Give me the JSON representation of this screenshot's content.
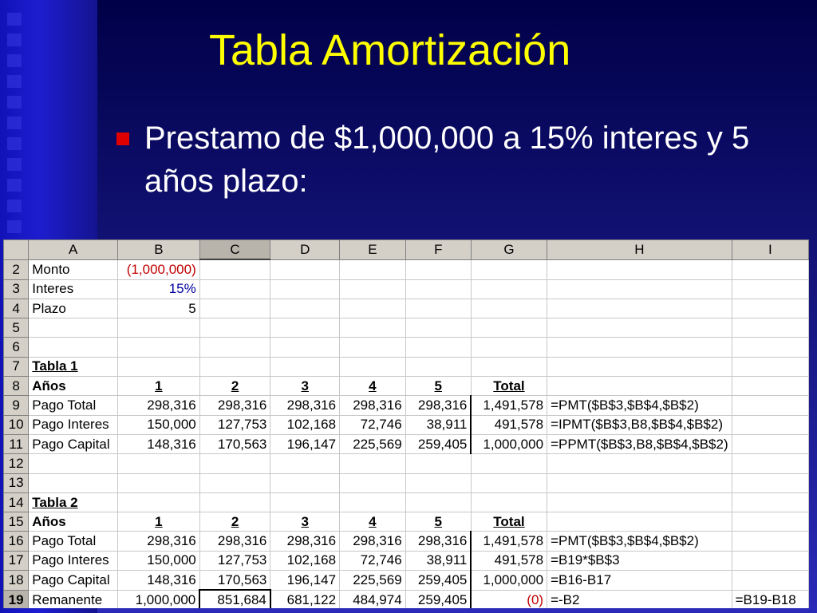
{
  "slide": {
    "title": "Tabla Amortización",
    "bullet": "Prestamo de $1,000,000 a 15% interes y 5 años plazo:",
    "colors": {
      "title": "#ffff00",
      "bullet_mark": "#e00000",
      "background": "#14147a"
    }
  },
  "sheet": {
    "columns": [
      "A",
      "B",
      "C",
      "D",
      "E",
      "F",
      "G",
      "H",
      "I"
    ],
    "selected_column": "C",
    "active_cell": "C19",
    "rows": [
      {
        "n": "2",
        "cells": [
          "Monto",
          "(1,000,000)",
          "",
          "",
          "",
          "",
          "",
          "",
          ""
        ]
      },
      {
        "n": "3",
        "cells": [
          "Interes",
          "15%",
          "",
          "",
          "",
          "",
          "",
          "",
          ""
        ]
      },
      {
        "n": "4",
        "cells": [
          "Plazo",
          "5",
          "",
          "",
          "",
          "",
          "",
          "",
          ""
        ]
      },
      {
        "n": "5",
        "cells": [
          "",
          "",
          "",
          "",
          "",
          "",
          "",
          "",
          ""
        ]
      },
      {
        "n": "6",
        "cells": [
          "",
          "",
          "",
          "",
          "",
          "",
          "",
          "",
          ""
        ]
      },
      {
        "n": "7",
        "cells": [
          "Tabla 1",
          "",
          "",
          "",
          "",
          "",
          "",
          "",
          ""
        ]
      },
      {
        "n": "8",
        "cells": [
          "Años",
          "1",
          "2",
          "3",
          "4",
          "5",
          "Total",
          "",
          ""
        ]
      },
      {
        "n": "9",
        "cells": [
          "Pago Total",
          "298,316",
          "298,316",
          "298,316",
          "298,316",
          "298,316",
          "1,491,578",
          "=PMT($B$3,$B$4,$B$2)",
          ""
        ]
      },
      {
        "n": "10",
        "cells": [
          "Pago Interes",
          "150,000",
          "127,753",
          "102,168",
          "72,746",
          "38,911",
          "491,578",
          "=IPMT($B$3,B8,$B$4,$B$2)",
          ""
        ]
      },
      {
        "n": "11",
        "cells": [
          "Pago Capital",
          "148,316",
          "170,563",
          "196,147",
          "225,569",
          "259,405",
          "1,000,000",
          "=PPMT($B$3,B8,$B$4,$B$2)",
          ""
        ]
      },
      {
        "n": "12",
        "cells": [
          "",
          "",
          "",
          "",
          "",
          "",
          "",
          "",
          ""
        ]
      },
      {
        "n": "13",
        "cells": [
          "",
          "",
          "",
          "",
          "",
          "",
          "",
          "",
          ""
        ]
      },
      {
        "n": "14",
        "cells": [
          "Tabla 2",
          "",
          "",
          "",
          "",
          "",
          "",
          "",
          ""
        ]
      },
      {
        "n": "15",
        "cells": [
          "Años",
          "1",
          "2",
          "3",
          "4",
          "5",
          "Total",
          "",
          ""
        ]
      },
      {
        "n": "16",
        "cells": [
          "Pago Total",
          "298,316",
          "298,316",
          "298,316",
          "298,316",
          "298,316",
          "1,491,578",
          "=PMT($B$3,$B$4,$B$2)",
          ""
        ]
      },
      {
        "n": "17",
        "cells": [
          "Pago Interes",
          "150,000",
          "127,753",
          "102,168",
          "72,746",
          "38,911",
          "491,578",
          "=B19*$B$3",
          ""
        ]
      },
      {
        "n": "18",
        "cells": [
          "Pago Capital",
          "148,316",
          "170,563",
          "196,147",
          "225,569",
          "259,405",
          "1,000,000",
          "=B16-B17",
          ""
        ]
      },
      {
        "n": "19",
        "cells": [
          "Remanente",
          "1,000,000",
          "851,684",
          "681,122",
          "484,974",
          "259,405",
          "(0)",
          "=-B2",
          "=B19-B18"
        ]
      }
    ]
  }
}
